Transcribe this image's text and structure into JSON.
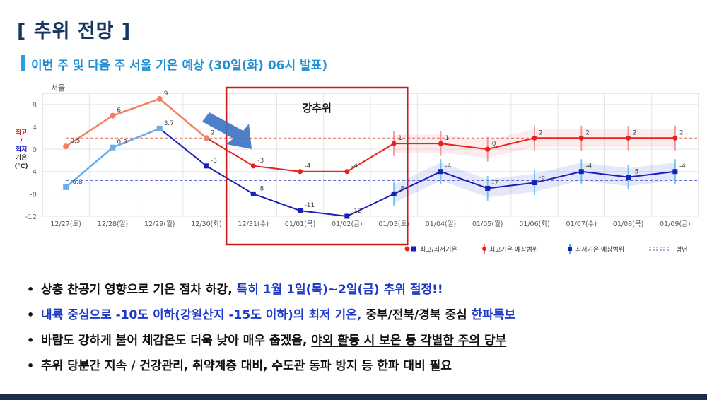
{
  "header": {
    "title": "[ 추위 전망 ]",
    "subtitle": "이번 주 및 다음 주 서울 기온 예상 (30일(화) 06시 발표)"
  },
  "chart_data": {
    "type": "line",
    "location": "서울",
    "ylabel": [
      "최고",
      "/",
      "최저",
      "기온",
      "(℃)"
    ],
    "ylim": [
      -12,
      10
    ],
    "yticks": [
      8,
      4,
      0,
      -4,
      -8,
      -12
    ],
    "categories": [
      "12/27(토)",
      "12/28(일)",
      "12/29(월)",
      "12/30(화)",
      "12/31(수)",
      "01/01(목)",
      "01/02(금)",
      "01/03(토)",
      "01/04(일)",
      "01/05(월)",
      "01/06(화)",
      "01/07(수)",
      "01/08(목)",
      "01/09(금)"
    ],
    "observed_max": [
      0.5,
      6,
      9,
      2
    ],
    "observed_min": [
      -6.8,
      0.3,
      3.7
    ],
    "forecast_max": [
      2,
      -3,
      -4,
      -4,
      1,
      1,
      0,
      2,
      2,
      2,
      2
    ],
    "forecast_min": [
      -3,
      -8,
      -11,
      -12,
      -8,
      -4,
      -7,
      -6,
      -4,
      -5,
      -4
    ],
    "max_labels": [
      "0.5",
      "6",
      "9",
      "2",
      "-3",
      "-4",
      "-4",
      "1",
      "1",
      "0",
      "2",
      "2",
      "2",
      "2"
    ],
    "min_labels": [
      "-6.8",
      "0.3",
      "3.7",
      "-3",
      "-8",
      "-11",
      "-12",
      "-8",
      "-4",
      "-7",
      "-6",
      "-4",
      "-5",
      "-4"
    ],
    "normal_max": 2,
    "normal_min": -5.6,
    "cold_period_label": "강추위",
    "legend": [
      "최고/최저기온",
      "최고기온 예상범위",
      "최저기온 예상범위",
      "평년"
    ],
    "grid": true,
    "colors": {
      "observed_max": "#f08060",
      "observed_min": "#6aaee8",
      "forecast_max": "#e8221a",
      "forecast_min": "#1a1fb8",
      "normal_max": "#e06a50",
      "normal_min": "#4a5fd0",
      "highlight": "#d01818",
      "arrow": "#3b72c4"
    }
  },
  "bullets": [
    {
      "normal": "상층 찬공기 영향으로 기온 점차 하강, ",
      "blue": "특히 1월 1일(목)~2일(금) 추위 절정!!"
    },
    {
      "blue": "내륙 중심으로 -10도 이하(강원산지 -15도 이하)의 최저 기온,",
      "normal": " 중부/전북/경북 중심 ",
      "blue2": "한파특보"
    },
    {
      "normal": "바람도 강하게 불어 체감온도 더욱 낮아 매우 춥겠음, ",
      "underline": "야외 활동 시 보온 등 각별한 주의 당부"
    },
    {
      "normal": "추위 당분간 지속 / 건강관리, 취약계층 대비, 수도관 동파 방지 등 한파 대비 필요"
    }
  ]
}
